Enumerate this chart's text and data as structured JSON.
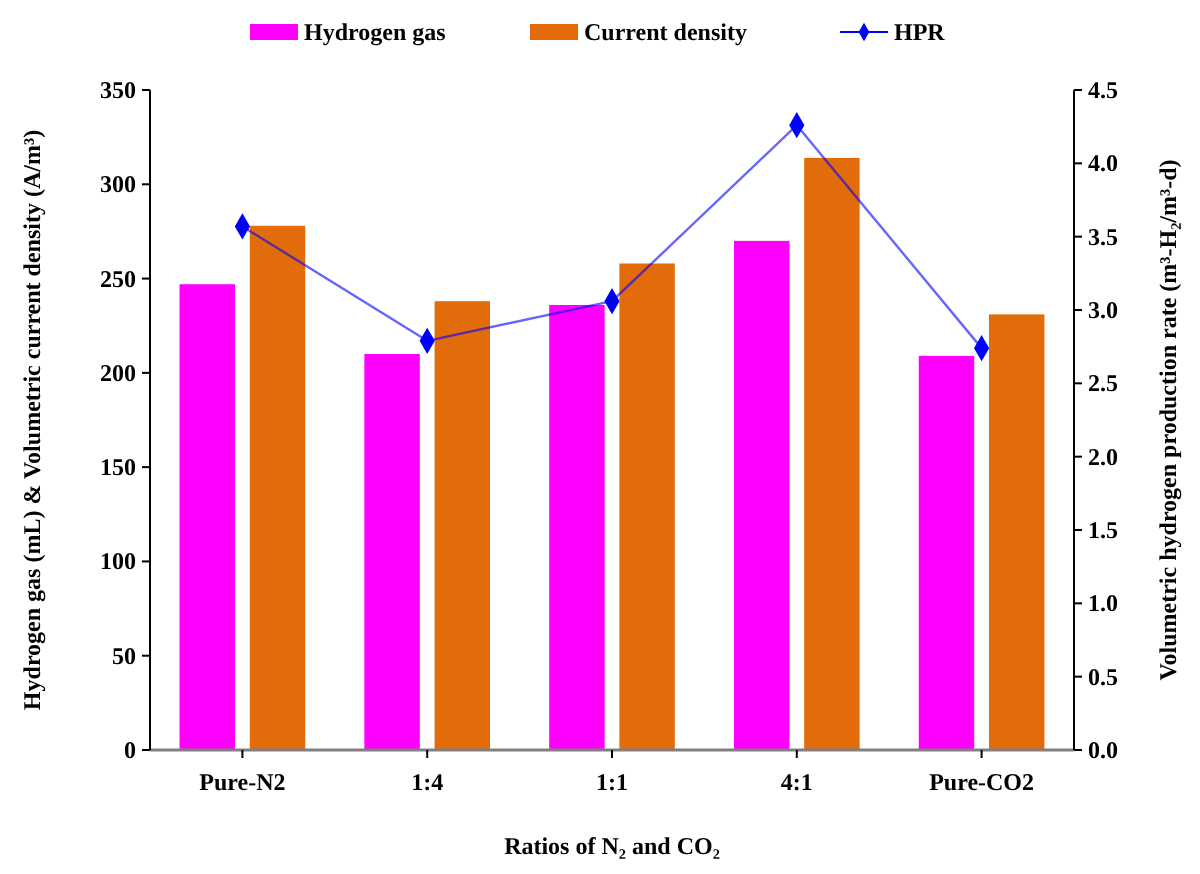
{
  "chart_data": {
    "type": "bar",
    "xlabel": "Ratios of N₂ and CO₂",
    "ylabel": "Hydrogen gas (mL) & Volumetric current density (A/m³)",
    "y2label": "Volumetric hydrogen production rate (m³-H₂/m³-d)",
    "categories": [
      "Pure-N2",
      "1:4",
      "1:1",
      "4:1",
      "Pure-CO2"
    ],
    "series": [
      {
        "name": "Hydrogen gas",
        "color": "#ff00ff",
        "values": [
          247,
          210,
          236,
          270,
          209
        ]
      },
      {
        "name": "Current density",
        "color": "#e36c0a",
        "values": [
          278,
          238,
          258,
          314,
          231
        ]
      },
      {
        "name": "HPR",
        "type": "line",
        "axis": "y2",
        "color": "#0000ff",
        "marker": "diamond",
        "values": [
          3.57,
          2.79,
          3.06,
          4.26,
          2.74
        ]
      }
    ],
    "ylim": [
      0,
      350
    ],
    "yticks": [
      0,
      50,
      100,
      150,
      200,
      250,
      300,
      350
    ],
    "y2lim": [
      0,
      4.5
    ],
    "y2ticks": [
      {
        "value": 0,
        "label": "0.0"
      },
      {
        "value": 0.5,
        "label": "0.5"
      },
      {
        "value": 1,
        "label": "1.0"
      },
      {
        "value": 1.5,
        "label": "1.5"
      },
      {
        "value": 2,
        "label": "2.0"
      },
      {
        "value": 2.5,
        "label": "2.5"
      },
      {
        "value": 3,
        "label": "3.0"
      },
      {
        "value": 3.5,
        "label": "3.5"
      },
      {
        "value": 4,
        "label": "4.0"
      },
      {
        "value": 4.5,
        "label": "4.5"
      }
    ],
    "grid": false,
    "legend": "top"
  }
}
